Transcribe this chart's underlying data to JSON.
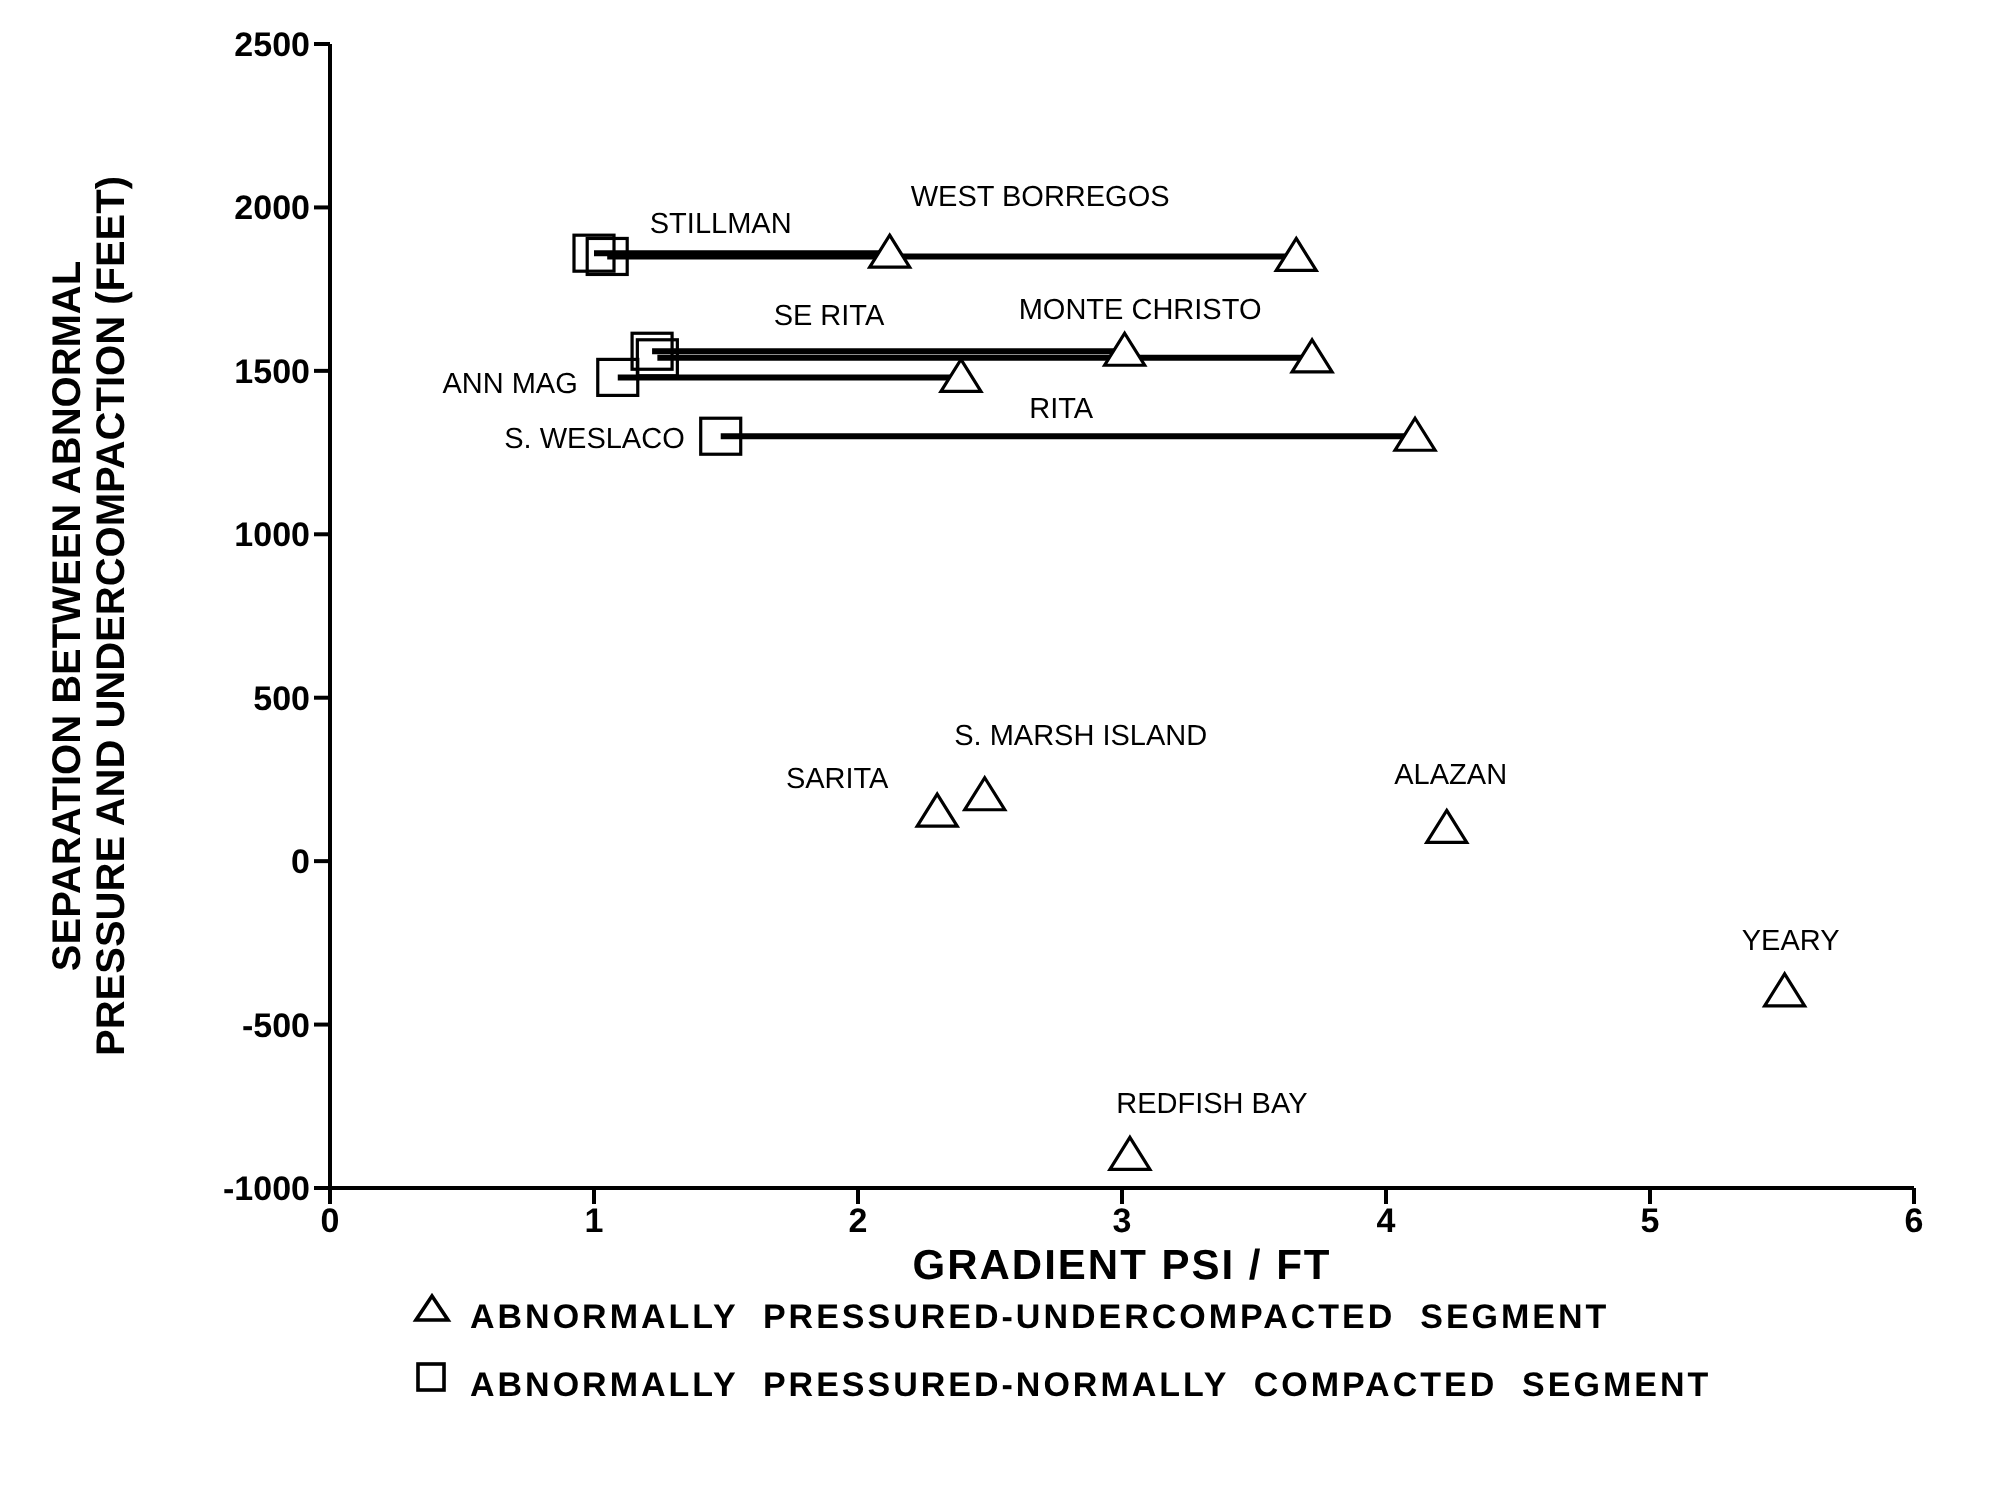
{
  "chart_data": {
    "type": "scatter",
    "xlabel": "GRADIENT PSI / FT",
    "ylabel": "SEPARATION BETWEEN ABNORMAL\nPRESSURE AND UNDERCOMPACTION (FEET)",
    "xlim": [
      0,
      6
    ],
    "ylim": [
      -1000,
      2500
    ],
    "xticks": [
      0,
      1,
      2,
      3,
      4,
      5,
      6
    ],
    "yticks": [
      -1000,
      -500,
      0,
      500,
      1000,
      1500,
      2000,
      2500
    ],
    "grid": false,
    "legend": "bottom",
    "series": [
      {
        "type": "line",
        "color": "#000000",
        "marker": "none",
        "x": [
          1.0,
          2.12
        ],
        "values": [
          1860,
          1860
        ]
      },
      {
        "type": "line",
        "color": "#000000",
        "marker": "none",
        "x": [
          1.05,
          3.66
        ],
        "values": [
          1850,
          1850
        ]
      },
      {
        "type": "line",
        "color": "#000000",
        "marker": "none",
        "x": [
          1.22,
          3.01
        ],
        "values": [
          1560,
          1560
        ]
      },
      {
        "type": "line",
        "color": "#000000",
        "marker": "none",
        "x": [
          1.24,
          3.72
        ],
        "values": [
          1540,
          1540
        ]
      },
      {
        "type": "line",
        "color": "#000000",
        "marker": "none",
        "x": [
          1.09,
          2.39
        ],
        "values": [
          1480,
          1480
        ]
      },
      {
        "type": "line",
        "color": "#000000",
        "marker": "none",
        "x": [
          1.48,
          4.11
        ],
        "values": [
          1300,
          1300
        ]
      },
      {
        "type": "scatter",
        "name": "ABNORMALLY  PRESSURED-UNDERCOMPACTED  SEGMENT",
        "color": "#000000",
        "marker": "triangle",
        "x": [
          2.12,
          3.66,
          3.01,
          3.72,
          2.39,
          4.11,
          2.3,
          2.48,
          4.23,
          5.51,
          3.03
        ],
        "values": [
          1860,
          1850,
          1560,
          1540,
          1480,
          1300,
          150,
          200,
          100,
          -400,
          -900
        ]
      },
      {
        "type": "scatter",
        "name": "ABNORMALLY  PRESSURED-NORMALLY  COMPACTED  SEGMENT",
        "color": "#000000",
        "marker": "square",
        "x": [
          1.0,
          1.05,
          1.22,
          1.24,
          1.09,
          1.48
        ],
        "values": [
          1860,
          1850,
          1560,
          1540,
          1480,
          1300
        ]
      }
    ],
    "annotations": [
      {
        "text": "STILLMAN",
        "x": 1.48,
        "y": 1860
      },
      {
        "text": "WEST BORREGOS",
        "x": 2.69,
        "y": 1850
      },
      {
        "text": "SE RITA",
        "x": 1.89,
        "y": 1560
      },
      {
        "text": "MONTE CHRISTO",
        "x": 3.72,
        "y": 1540
      },
      {
        "text": "ANN MAG",
        "x": 1.09,
        "y": 1480
      },
      {
        "text": "S. WESLACO",
        "x": 1.48,
        "y": 1300
      },
      {
        "text": "RITA",
        "x": 2.77,
        "y": 1300
      },
      {
        "text": "SARITA",
        "x": 2.3,
        "y": 150
      },
      {
        "text": "S. MARSH ISLAND",
        "x": 2.48,
        "y": 200
      },
      {
        "text": "ALAZAN",
        "x": 4.23,
        "y": 100
      },
      {
        "text": "YEARY",
        "x": 5.51,
        "y": -400
      },
      {
        "text": "REDFISH BAY",
        "x": 3.03,
        "y": -900
      }
    ]
  }
}
